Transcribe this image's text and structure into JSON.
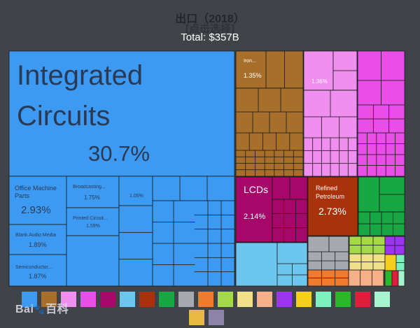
{
  "chart_data": {
    "type": "treemap",
    "title": "出口（2018）",
    "subtitle": "[点击选择]",
    "total_label": "Total: $357B",
    "tiles": [
      {
        "name": "Integrated Circuits",
        "pct": "30.7%",
        "color": "#3d9af2",
        "group": "electronics"
      },
      {
        "name": "Office Machine Parts",
        "pct": "2.93%",
        "color": "#3d9af2",
        "group": "electronics"
      },
      {
        "name": "Blank Audio Media",
        "pct": "1.89%",
        "color": "#3d9af2",
        "group": "electronics"
      },
      {
        "name": "Semiconductor...",
        "pct": "1.87%",
        "color": "#3d9af2",
        "group": "electronics"
      },
      {
        "name": "Broadcasting...",
        "pct": "1.75%",
        "color": "#3d9af2",
        "group": "electronics"
      },
      {
        "name": "Printed Circuit...",
        "pct": "1.59%",
        "color": "#3d9af2",
        "group": "electronics"
      },
      {
        "name": "",
        "pct": "1.05%",
        "color": "#3d9af2",
        "group": "electronics"
      },
      {
        "name": "Iron...",
        "pct": "1.35%",
        "color": "#a86f2a",
        "group": "metals"
      },
      {
        "name": "",
        "pct": "1.36%",
        "color": "#ee74ee",
        "group": "textiles"
      },
      {
        "name": "LCDs",
        "pct": "2.14%",
        "color": "#a6086a",
        "group": "instruments"
      },
      {
        "name": "Refined Petroleum",
        "pct": "2.73%",
        "color": "#a8320a",
        "group": "minerals"
      }
    ],
    "legend_colors": [
      "#3d9af2",
      "#a86f2a",
      "#f08ff0",
      "#ea4ee8",
      "#a6086a",
      "#6cc6ee",
      "#a8320a",
      "#17a743",
      "#a6a9b0",
      "#f07b2e",
      "#a4d94b",
      "#f0e08a",
      "#f5b08a",
      "#9b35f0",
      "#f5cf1a",
      "#7df0c0",
      "#2ab82a",
      "#e01e3c",
      "#a6f5d0",
      "#e8b840",
      "#8d83a8"
    ]
  },
  "watermark": {
    "brand": "Bai",
    "paw": "🐾",
    "chinese": "百科"
  }
}
